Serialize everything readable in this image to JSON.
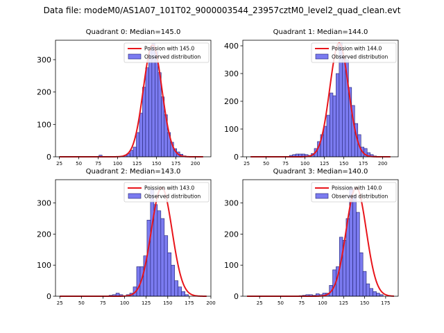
{
  "suptitle": "Data file: modeM0/AS1A07_101T02_9000003544_23957cztM0_level2_quad_clean.evt",
  "colors": {
    "bar_fill": "#7b7bf0",
    "bar_edge": "#1f1f6e",
    "fit_line": "#e8141a"
  },
  "chart_data": [
    {
      "type": "bar",
      "title": "Quadrant 0: Median=145.0",
      "median": 145.0,
      "legend": {
        "line": "Poission with 145.0",
        "bar": "Observed distribution",
        "placement": "top-right"
      },
      "xlim": [
        20,
        220
      ],
      "ylim": [
        0,
        360
      ],
      "xticks": [
        25,
        50,
        75,
        100,
        125,
        150,
        175,
        200
      ],
      "yticks": [
        0,
        100,
        200,
        300
      ],
      "bin_start": 76,
      "bin_width": 4,
      "values": [
        5,
        0,
        0,
        0,
        0,
        0,
        0,
        2,
        5,
        10,
        20,
        30,
        75,
        135,
        215,
        275,
        330,
        350,
        325,
        260,
        185,
        130,
        75,
        45,
        25,
        15,
        8,
        3
      ],
      "fit_mean": 145,
      "fit_sigma": 12.0,
      "fit_peak": 345,
      "fit_range": [
        25,
        210
      ]
    },
    {
      "type": "bar",
      "title": "Quadrant 1: Median=144.0",
      "median": 144.0,
      "legend": {
        "line": "Poission with 144.0",
        "bar": "Observed distribution",
        "placement": "top-right"
      },
      "xlim": [
        20,
        220
      ],
      "ylim": [
        0,
        420
      ],
      "xticks": [
        25,
        50,
        75,
        100,
        125,
        150,
        175,
        200
      ],
      "yticks": [
        0,
        100,
        200,
        300,
        400
      ],
      "bin_start": 80,
      "bin_width": 4,
      "values": [
        5,
        8,
        10,
        10,
        10,
        8,
        5,
        12,
        30,
        55,
        80,
        110,
        150,
        230,
        220,
        300,
        410,
        360,
        350,
        250,
        185,
        120,
        80,
        35,
        30,
        15,
        8,
        3
      ],
      "fit_mean": 144,
      "fit_sigma": 12.0,
      "fit_peak": 410,
      "fit_range": [
        30,
        210
      ]
    },
    {
      "type": "bar",
      "title": "Quadrant 2: Median=143.0",
      "median": 143.0,
      "legend": {
        "line": "Poission with 143.0",
        "bar": "Observed distribution",
        "placement": "top-right"
      },
      "xlim": [
        20,
        200
      ],
      "ylim": [
        0,
        375
      ],
      "xticks": [
        25,
        50,
        75,
        100,
        125,
        150,
        175,
        200
      ],
      "yticks": [
        0,
        100,
        200,
        300
      ],
      "bin_start": 82,
      "bin_width": 4,
      "values": [
        3,
        5,
        10,
        5,
        0,
        5,
        10,
        30,
        95,
        95,
        130,
        245,
        345,
        295,
        275,
        250,
        195,
        140,
        100,
        50,
        30,
        15,
        5
      ],
      "fit_mean": 143,
      "fit_sigma": 12.0,
      "fit_peak": 350,
      "fit_range": [
        25,
        195
      ]
    },
    {
      "type": "bar",
      "title": "Quadrant 3: Median=140.0",
      "median": 140.0,
      "legend": {
        "line": "Poission with 140.0",
        "bar": "Observed distribution",
        "placement": "top-right"
      },
      "xlim": [
        5,
        190
      ],
      "ylim": [
        0,
        375
      ],
      "xticks": [
        25,
        50,
        75,
        100,
        125,
        150,
        175
      ],
      "yticks": [
        0,
        100,
        200,
        300
      ],
      "bin_start": 72,
      "bin_width": 4,
      "values": [
        2,
        3,
        5,
        5,
        3,
        8,
        5,
        10,
        10,
        35,
        85,
        95,
        190,
        180,
        250,
        350,
        325,
        270,
        140,
        80,
        40,
        25,
        15,
        10,
        5
      ],
      "fit_mean": 140,
      "fit_sigma": 12.0,
      "fit_peak": 350,
      "fit_range": [
        10,
        185
      ]
    }
  ]
}
